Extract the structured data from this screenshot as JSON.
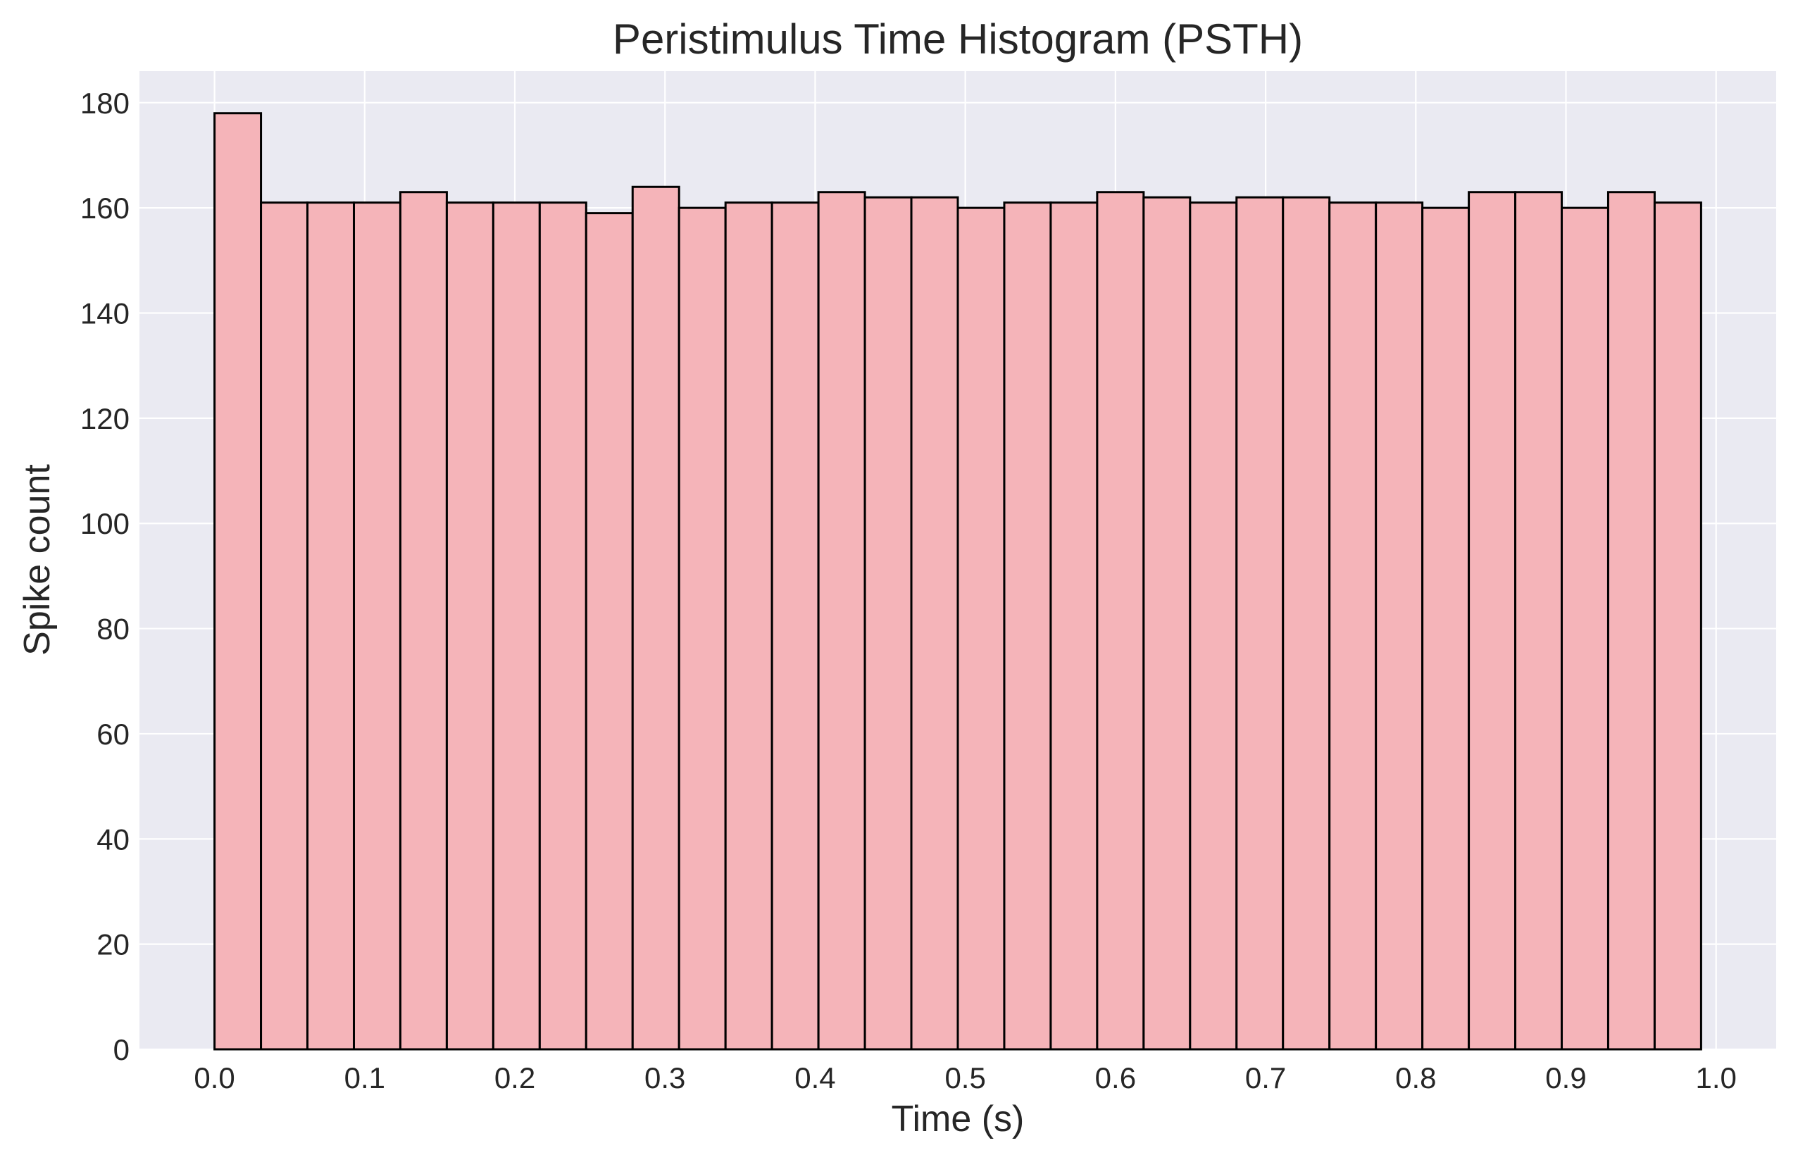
{
  "chart_data": {
    "type": "bar",
    "histogram": true,
    "title": "Peristimulus Time Histogram (PSTH)",
    "xlabel": "Time (s)",
    "ylabel": "Spike count",
    "xlim": [
      -0.05,
      1.04
    ],
    "ylim": [
      0,
      186
    ],
    "xticks": [
      0.0,
      0.1,
      0.2,
      0.3,
      0.4,
      0.5,
      0.6,
      0.7,
      0.8,
      0.9,
      1.0
    ],
    "xtick_labels": [
      "0.0",
      "0.1",
      "0.2",
      "0.3",
      "0.4",
      "0.5",
      "0.6",
      "0.7",
      "0.8",
      "0.9",
      "1.0"
    ],
    "yticks": [
      0,
      20,
      40,
      60,
      80,
      100,
      120,
      140,
      160,
      180
    ],
    "ytick_labels": [
      "0",
      "20",
      "40",
      "60",
      "80",
      "100",
      "120",
      "140",
      "160",
      "180"
    ],
    "bin_start": 0.0,
    "bin_end": 0.99,
    "bin_count": 32,
    "values": [
      178,
      161,
      161,
      161,
      163,
      161,
      161,
      161,
      159,
      164,
      160,
      161,
      161,
      163,
      162,
      162,
      160,
      161,
      161,
      163,
      162,
      161,
      162,
      162,
      161,
      161,
      160,
      163,
      163,
      160,
      163,
      161
    ],
    "grid": true,
    "legend": "none",
    "colors": {
      "bar_fill": "#f5b4b9",
      "bar_edge": "#000000",
      "plot_background": "#eaeaf2",
      "grid": "#ffffff",
      "text": "#262626"
    }
  }
}
